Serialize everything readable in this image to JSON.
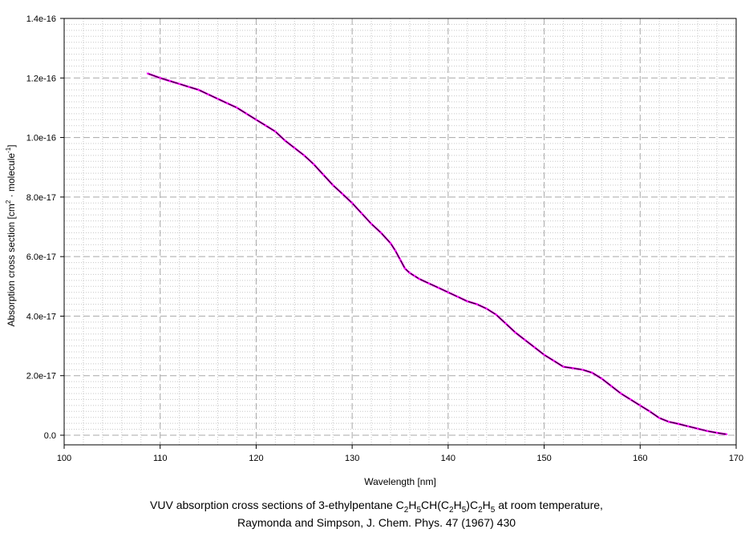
{
  "chart_data": {
    "type": "line",
    "xlabel": "Wavelength [nm]",
    "ylabel_main": "Absorption cross section [cm",
    "ylabel_sup1": "2",
    "ylabel_mid": " · molecule",
    "ylabel_sup2": "-1",
    "ylabel_end": "]",
    "xlim": [
      100,
      170
    ],
    "ylim": [
      0,
      1.4e-16
    ],
    "x_ticks": [
      100,
      110,
      120,
      130,
      140,
      150,
      160,
      170
    ],
    "x_tick_labels": [
      "100",
      "110",
      "120",
      "130",
      "140",
      "150",
      "160",
      "170"
    ],
    "y_ticks": [
      0,
      2e-17,
      4e-17,
      6e-17,
      8e-17,
      1e-16,
      1.2e-16,
      1.4e-16
    ],
    "y_tick_labels": [
      "0.0",
      "2.0e-17",
      "4.0e-17",
      "6.0e-17",
      "8.0e-17",
      "1.0e-16",
      "1.2e-16",
      "1.4e-16"
    ],
    "grid": true,
    "line_color": "#000000",
    "marker_color": "#ff00ff",
    "series": [
      {
        "x": [
          108.7,
          110,
          111,
          112,
          113,
          114,
          115,
          116,
          117,
          118,
          119,
          120,
          121,
          122,
          123,
          124,
          125,
          126,
          127,
          128,
          129,
          130,
          131,
          132,
          133,
          134,
          134.5,
          135,
          135.5,
          136,
          136.5,
          137,
          138,
          139,
          140,
          141,
          142,
          143,
          144,
          145,
          146,
          147,
          148,
          149,
          150,
          151,
          152,
          153,
          154,
          155,
          156,
          157,
          158,
          159,
          160,
          161,
          162,
          163,
          164,
          165,
          166,
          167,
          168,
          169
        ],
        "y": [
          1.215e-16,
          1.2e-16,
          1.19e-16,
          1.18e-16,
          1.17e-16,
          1.16e-16,
          1.145e-16,
          1.13e-16,
          1.115e-16,
          1.1e-16,
          1.08e-16,
          1.06e-16,
          1.04e-16,
          1.02e-16,
          9.9e-17,
          9.65e-17,
          9.4e-17,
          9.1e-17,
          8.75e-17,
          8.4e-17,
          8.1e-17,
          7.8e-17,
          7.45e-17,
          7.1e-17,
          6.8e-17,
          6.45e-17,
          6.2e-17,
          5.9e-17,
          5.6e-17,
          5.45e-17,
          5.35e-17,
          5.25e-17,
          5.1e-17,
          4.95e-17,
          4.8e-17,
          4.65e-17,
          4.5e-17,
          4.4e-17,
          4.25e-17,
          4.05e-17,
          3.75e-17,
          3.45e-17,
          3.2e-17,
          2.95e-17,
          2.7e-17,
          2.5e-17,
          2.3e-17,
          2.25e-17,
          2.2e-17,
          2.1e-17,
          1.9e-17,
          1.65e-17,
          1.4e-17,
          1.2e-17,
          1e-17,
          8e-18,
          5.8e-18,
          4.5e-18,
          3.8e-18,
          3e-18,
          2.2e-18,
          1.4e-18,
          8e-19,
          3e-19
        ]
      }
    ]
  },
  "caption": {
    "line1_prefix": "VUV absorption cross sections of 3-ethylpentane C",
    "f1": "H",
    "f2": "CH(C",
    "f3": "H",
    "f4": ")C",
    "f5": "H",
    "line1_suffix": " at room temperature,",
    "sub_2": "2",
    "sub_5": "5",
    "line2": "Raymonda and Simpson, J. Chem. Phys. 47 (1967) 430"
  }
}
